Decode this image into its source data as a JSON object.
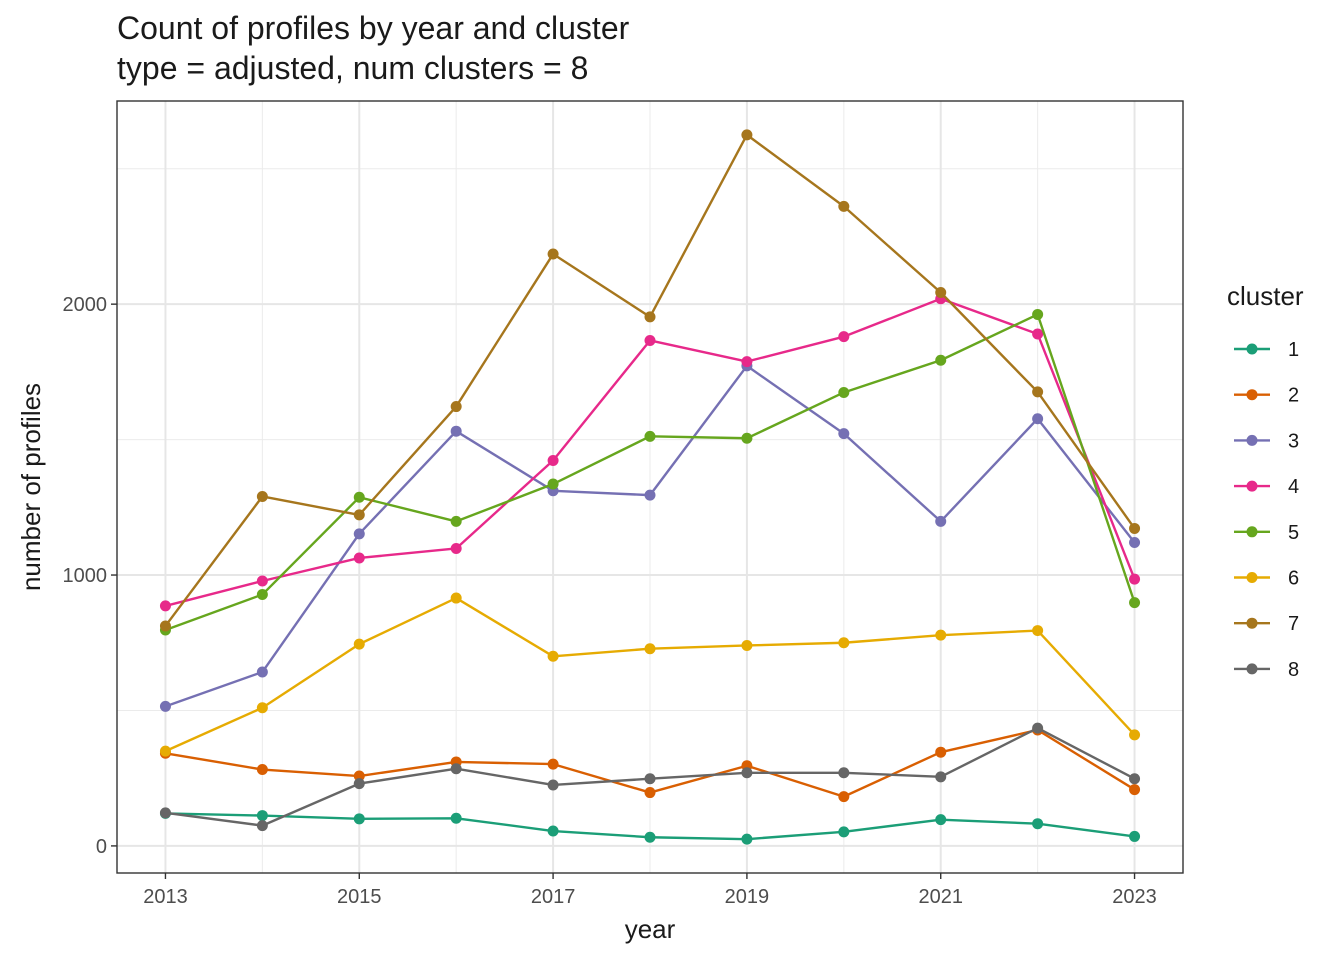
{
  "chart_data": {
    "type": "line",
    "title": "Count of profiles by year and cluster",
    "subtitle": "type = adjusted, num clusters = 8",
    "xlabel": "year",
    "ylabel": "number of profiles",
    "x": [
      2013,
      2014,
      2015,
      2016,
      2017,
      2018,
      2019,
      2020,
      2021,
      2022,
      2023
    ],
    "xlim": [
      2012.5,
      2023.5
    ],
    "ylim": [
      -100,
      2750
    ],
    "x_ticks": [
      2013,
      2015,
      2017,
      2019,
      2021,
      2023
    ],
    "y_ticks": [
      0,
      1000,
      2000
    ],
    "grid": true,
    "legend_title": "cluster",
    "legend_position": "right",
    "series": [
      {
        "name": "1",
        "color": "#1b9e77",
        "values": [
          120,
          112,
          100,
          102,
          55,
          32,
          25,
          52,
          97,
          82,
          35
        ]
      },
      {
        "name": "2",
        "color": "#d95f02",
        "values": [
          342,
          282,
          258,
          310,
          302,
          197,
          296,
          182,
          346,
          428,
          208
        ]
      },
      {
        "name": "3",
        "color": "#7570b3",
        "values": [
          515,
          642,
          1152,
          1531,
          1311,
          1295,
          1772,
          1522,
          1198,
          1577,
          1120
        ]
      },
      {
        "name": "4",
        "color": "#e7298a",
        "values": [
          886,
          978,
          1063,
          1098,
          1423,
          1866,
          1788,
          1880,
          2020,
          1890,
          985
        ]
      },
      {
        "name": "5",
        "color": "#66a61e",
        "values": [
          797,
          928,
          1287,
          1198,
          1336,
          1512,
          1505,
          1674,
          1793,
          1962,
          898
        ]
      },
      {
        "name": "6",
        "color": "#e6ab02",
        "values": [
          350,
          510,
          745,
          915,
          700,
          728,
          740,
          750,
          778,
          795,
          410
        ]
      },
      {
        "name": "7",
        "color": "#a6761d",
        "values": [
          812,
          1290,
          1222,
          1622,
          2185,
          1953,
          2625,
          2361,
          2043,
          1676,
          1172
        ]
      },
      {
        "name": "8",
        "color": "#666666",
        "values": [
          122,
          75,
          230,
          285,
          225,
          248,
          270,
          270,
          255,
          435,
          248
        ]
      }
    ]
  }
}
